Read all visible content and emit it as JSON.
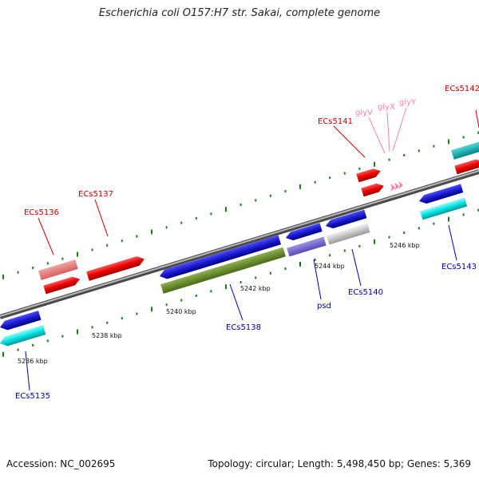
{
  "title": "Escherichia coli O157:H7 str. Sakai, complete genome",
  "footer": {
    "accession": "Accession: NC_002695",
    "summary": "Topology: circular; Length: 5,498,450 bp; Genes: 5,369"
  },
  "colors": {
    "backbone": "#8a8a8a",
    "tick": "#1f7a1f",
    "forward_label": "#cc0000",
    "reverse_label": "#0000aa",
    "trna_label": "#ff80b0"
  },
  "scale_labels": [
    {
      "text": "5236 kbp",
      "kbp": 5236
    },
    {
      "text": "5238 kbp",
      "kbp": 5238
    },
    {
      "text": "5240 kbp",
      "kbp": 5240
    },
    {
      "text": "5242 kbp",
      "kbp": 5242
    },
    {
      "text": "5244 kbp",
      "kbp": 5244
    },
    {
      "text": "5246 kbp",
      "kbp": 5246
    }
  ],
  "genes": [
    {
      "name": "ECs5135",
      "strand": "reverse",
      "icon": "reverse-strand-arrow"
    },
    {
      "name": "ECs5136",
      "strand": "forward",
      "icon": "forward-strand-arrow"
    },
    {
      "name": "ECs5137",
      "strand": "forward",
      "icon": "forward-strand-arrow"
    },
    {
      "name": "ECs5138",
      "strand": "reverse",
      "icon": "reverse-strand-arrow"
    },
    {
      "name": "psd",
      "strand": "reverse",
      "icon": "reverse-strand-arrow"
    },
    {
      "name": "ECs5140",
      "strand": "reverse",
      "icon": "reverse-strand-arrow"
    },
    {
      "name": "ECs5141",
      "strand": "forward",
      "icon": "forward-strand-arrow"
    },
    {
      "name": "glyV",
      "strand": "forward",
      "icon": "trna-arrow"
    },
    {
      "name": "glyX",
      "strand": "forward",
      "icon": "trna-arrow"
    },
    {
      "name": "glyY",
      "strand": "forward",
      "icon": "trna-arrow"
    },
    {
      "name": "ECs5142",
      "strand": "forward",
      "icon": "forward-strand-arrow"
    },
    {
      "name": "ECs5143",
      "strand": "reverse",
      "icon": "reverse-strand-arrow"
    }
  ]
}
